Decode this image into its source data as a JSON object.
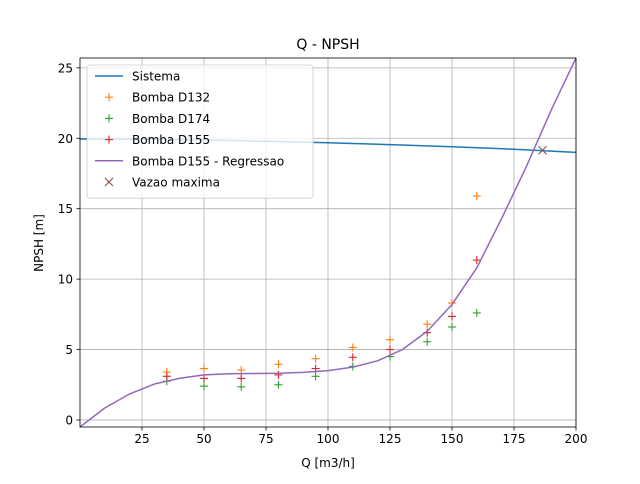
{
  "chart_data": {
    "type": "line",
    "title": "Q - NPSH",
    "xlabel": "Q [m3/h]",
    "ylabel": "NPSH [m]",
    "xlim": [
      0,
      200
    ],
    "ylim": [
      -0.5,
      25.7
    ],
    "xticks": [
      25,
      50,
      75,
      100,
      125,
      150,
      175,
      200
    ],
    "yticks": [
      0,
      5,
      10,
      15,
      20,
      25
    ],
    "grid": true,
    "legend_position": "upper-left",
    "series": [
      {
        "name": "Sistema",
        "kind": "line",
        "color": "#1f77b4",
        "x": [
          0,
          25,
          50,
          75,
          100,
          125,
          150,
          175,
          200
        ],
        "y": [
          19.95,
          19.94,
          19.88,
          19.79,
          19.68,
          19.55,
          19.4,
          19.22,
          19.0
        ]
      },
      {
        "name": "Bomba D132",
        "kind": "marker",
        "marker": "+",
        "color": "#ff7f0e",
        "x": [
          35,
          50,
          65,
          80,
          95,
          110,
          125,
          140,
          150,
          160
        ],
        "y": [
          3.4,
          3.65,
          3.55,
          3.95,
          4.35,
          5.15,
          5.7,
          6.8,
          8.3,
          15.9
        ]
      },
      {
        "name": "Bomba D174",
        "kind": "marker",
        "marker": "+",
        "color": "#2ca02c",
        "x": [
          35,
          50,
          65,
          80,
          95,
          110,
          125,
          140,
          150,
          160
        ],
        "y": [
          2.75,
          2.4,
          2.35,
          2.5,
          3.1,
          3.8,
          4.5,
          5.55,
          6.6,
          7.6
        ]
      },
      {
        "name": "Bomba D155",
        "kind": "marker",
        "marker": "+",
        "color": "#d62728",
        "x": [
          35,
          50,
          65,
          80,
          95,
          110,
          125,
          140,
          150,
          160
        ],
        "y": [
          3.1,
          2.95,
          2.95,
          3.2,
          3.65,
          4.45,
          5.0,
          6.2,
          7.35,
          11.35
        ]
      },
      {
        "name": "Bomba D155 - Regressao",
        "kind": "line",
        "color": "#9467bd",
        "x": [
          0,
          10,
          20,
          30,
          40,
          50,
          60,
          70,
          80,
          90,
          100,
          110,
          120,
          130,
          140,
          150,
          160,
          170,
          180,
          190,
          200
        ],
        "y": [
          -0.5,
          0.85,
          1.85,
          2.55,
          2.95,
          3.2,
          3.28,
          3.3,
          3.32,
          3.38,
          3.5,
          3.75,
          4.2,
          5.0,
          6.3,
          8.2,
          10.8,
          14.3,
          18.0,
          22.0,
          25.7
        ]
      },
      {
        "name": "Vazao maxima",
        "kind": "marker",
        "marker": "x",
        "color": "#8c564b",
        "x": [
          186.5
        ],
        "y": [
          19.15
        ]
      }
    ]
  }
}
